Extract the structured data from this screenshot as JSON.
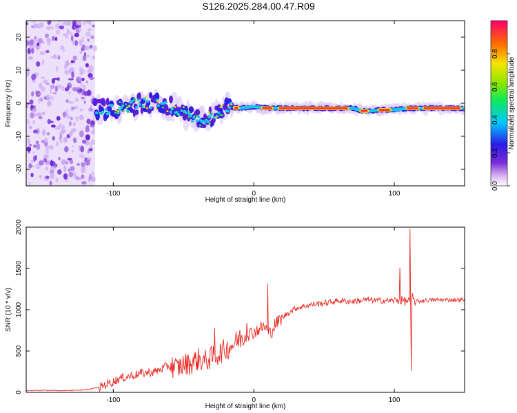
{
  "title": "S126.2025.284.00.47.R09",
  "colors": {
    "background": "#ffffff",
    "snr_line": "#e8251f",
    "axis": "#000000",
    "spectrogram_bg": "#ffffff"
  },
  "chart_data": [
    {
      "type": "heatmap",
      "name": "spectrogram",
      "xlabel": "Height of straight line (km)",
      "ylabel": "Frequency (Hz)",
      "xlim": [
        -162,
        150
      ],
      "ylim": [
        -25,
        25
      ],
      "xticks": [
        -100,
        0,
        100
      ],
      "yticks": [
        -20,
        -10,
        0,
        10,
        20
      ],
      "noise_region_x": [
        -162,
        -113
      ],
      "ridge": {
        "description": "dominant frequency track",
        "x": [
          -113,
          -100,
          -90,
          -80,
          -70,
          -60,
          -50,
          -40,
          -30,
          -20,
          -10,
          0,
          10,
          20,
          40,
          60,
          70,
          80,
          90,
          100,
          110,
          120,
          150
        ],
        "freq": [
          -1.5,
          -2,
          -1,
          0,
          0,
          -1,
          -3,
          -5,
          -4,
          -1,
          -1.5,
          -1,
          -1.5,
          -1.5,
          -1.5,
          -1.5,
          -1.5,
          -2.5,
          -2,
          -2,
          -1.5,
          -1.5,
          -1.5
        ]
      },
      "colorbar": {
        "label": "Normalized spectral amplitude",
        "min": 0.0,
        "max": 1.0,
        "ticks": [
          "0.0",
          "0.2",
          "0.4",
          "0.6",
          "0.8"
        ],
        "tick_values": [
          0.0,
          0.2,
          0.4,
          0.6,
          0.8
        ]
      }
    },
    {
      "type": "line",
      "name": "snr",
      "xlabel": "Height of straight line (km)",
      "ylabel": "SNR (10 * v/v)",
      "xlim": [
        -162,
        150
      ],
      "ylim": [
        0,
        2000
      ],
      "xticks": [
        -100,
        0,
        100
      ],
      "yticks": [
        0,
        500,
        1000,
        1500,
        2000
      ],
      "series": [
        {
          "name": "SNR",
          "x": [
            -162,
            -150,
            -140,
            -130,
            -120,
            -110,
            -105,
            -100,
            -95,
            -90,
            -85,
            -80,
            -75,
            -70,
            -65,
            -60,
            -55,
            -50,
            -45,
            -40,
            -35,
            -30,
            -25,
            -20,
            -15,
            -10,
            -5,
            0,
            5,
            8,
            10,
            12,
            15,
            20,
            25,
            30,
            35,
            40,
            50,
            60,
            70,
            80,
            90,
            100,
            104,
            106,
            108,
            110,
            111,
            112,
            113,
            115,
            120,
            130,
            140,
            150
          ],
          "y": [
            20,
            25,
            20,
            25,
            30,
            60,
            100,
            130,
            170,
            190,
            210,
            230,
            240,
            250,
            290,
            330,
            290,
            340,
            350,
            400,
            380,
            420,
            470,
            520,
            580,
            650,
            700,
            730,
            780,
            800,
            720,
            720,
            820,
            900,
            970,
            1020,
            1040,
            1060,
            1080,
            1110,
            1100,
            1120,
            1110,
            1110,
            1120,
            1110,
            1100,
            1120,
            1080,
            1090,
            1110,
            1100,
            1110,
            1120,
            1120,
            1120
          ]
        }
      ],
      "spikes": {
        "x": [
          -28,
          -5,
          10,
          104,
          111,
          112,
          113
        ],
        "y": [
          780,
          840,
          1320,
          1510,
          1980,
          260,
          1200
        ]
      }
    }
  ]
}
